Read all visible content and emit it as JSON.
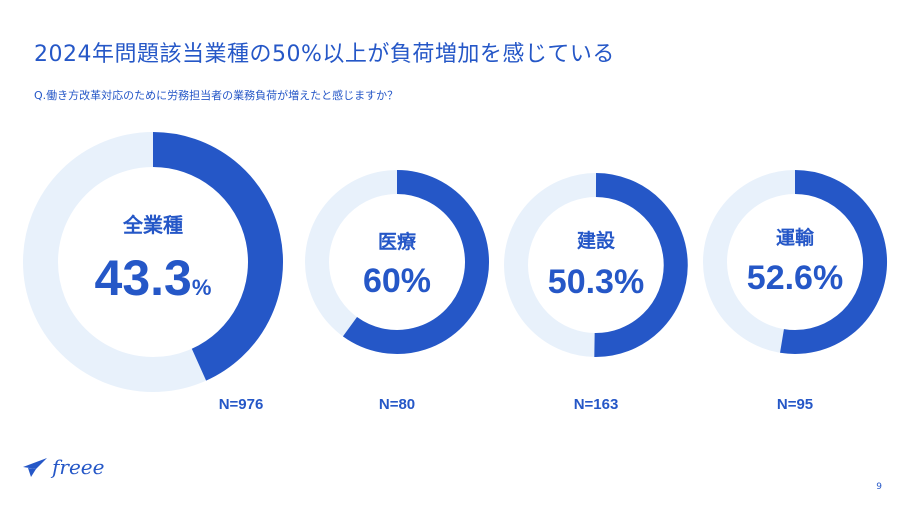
{
  "title": "2024年問題該当業種の50%以上が負荷増加を感じている",
  "question": "Q.働き方改革対応のために労務担当者の業務負荷が増えたと感じますか？",
  "colors": {
    "accent": "#2557c7",
    "track": "#e8f1fb"
  },
  "chart_data": {
    "type": "pie",
    "variant": "donut",
    "series": [
      {
        "name": "全業種",
        "value": 43.3,
        "display_number": "43.3",
        "display_unit": "%",
        "n_label": "N=976"
      },
      {
        "name": "医療",
        "value": 60,
        "display_number": "60",
        "display_unit": "%",
        "n_label": "N=80"
      },
      {
        "name": "建設",
        "value": 50.3,
        "display_number": "50.3",
        "display_unit": "%",
        "n_label": "N=163"
      },
      {
        "name": "運輸",
        "value": 52.6,
        "display_number": "52.6",
        "display_unit": "%",
        "n_label": "N=95"
      }
    ]
  },
  "logo": {
    "text": "freee"
  },
  "page_number": "9"
}
